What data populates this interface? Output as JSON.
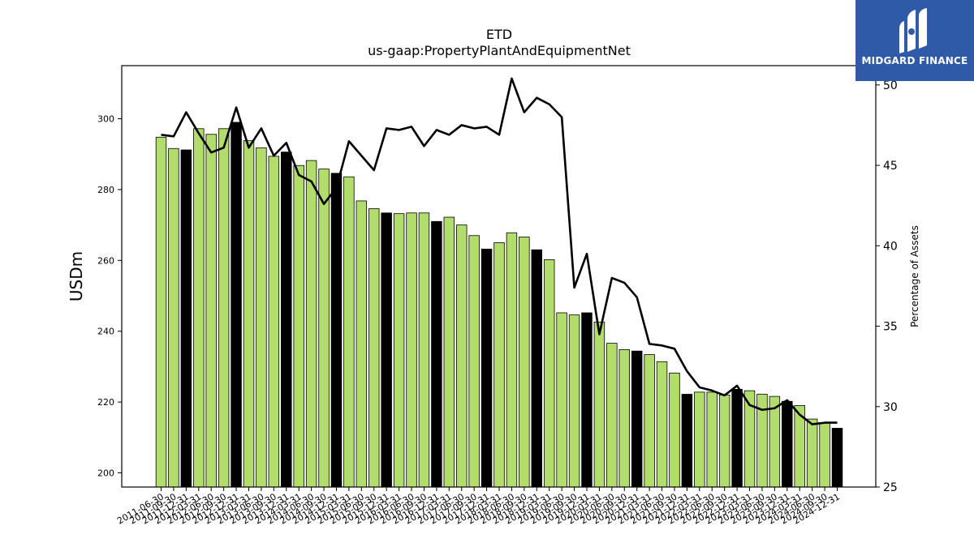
{
  "brand": {
    "name": "MIDGARD FINANCE",
    "logo_color": "#2f5aa8"
  },
  "chart_data": {
    "type": "bar",
    "title": "ETD",
    "subtitle": "us-gaap:PropertyPlantAndEquipmentNet",
    "ylabel": "USDm",
    "y2label": "Percentage of Assets",
    "ylim": [
      196,
      315
    ],
    "y2lim": [
      25,
      51.2
    ],
    "yticks": [
      200,
      220,
      240,
      260,
      280,
      300
    ],
    "y2ticks": [
      25,
      30,
      35,
      40,
      45,
      50
    ],
    "colors": {
      "bar": "#b2dc6b",
      "bar_q4": "#000000",
      "line": "#000000"
    },
    "categories": [
      "2011-06-30",
      "2011-09-30",
      "2011-12-31",
      "2012-03-31",
      "2012-06-30",
      "2012-09-30",
      "2012-12-31",
      "2013-03-31",
      "2013-06-30",
      "2013-09-30",
      "2013-12-31",
      "2014-03-31",
      "2014-06-30",
      "2014-09-30",
      "2014-12-31",
      "2015-03-31",
      "2015-06-30",
      "2015-09-30",
      "2015-12-31",
      "2016-03-31",
      "2016-06-30",
      "2016-09-30",
      "2016-12-31",
      "2017-03-31",
      "2017-06-30",
      "2017-09-30",
      "2017-12-31",
      "2018-03-31",
      "2018-06-30",
      "2018-09-30",
      "2018-12-31",
      "2019-03-31",
      "2019-06-30",
      "2019-09-30",
      "2019-12-31",
      "2020-03-31",
      "2020-06-30",
      "2020-09-30",
      "2020-12-31",
      "2021-03-31",
      "2021-06-30",
      "2021-09-30",
      "2021-12-31",
      "2022-03-31",
      "2022-06-30",
      "2022-09-30",
      "2022-12-31",
      "2023-03-31",
      "2023-06-30",
      "2023-09-30",
      "2023-12-31",
      "2024-03-31",
      "2024-06-30",
      "2024-09-30",
      "2024-12-31"
    ],
    "series": [
      {
        "type": "bar",
        "axis": "left",
        "values": [
          294.8,
          291.6,
          291.2,
          297.2,
          295.6,
          297.2,
          299.0,
          293.8,
          291.8,
          289.4,
          290.6,
          286.8,
          288.2,
          285.8,
          284.6,
          283.6,
          276.8,
          274.6,
          273.4,
          273.2,
          273.4,
          273.4,
          271.0,
          272.2,
          270.0,
          267.0,
          263.2,
          265.0,
          267.8,
          266.6,
          263.0,
          260.2,
          245.2,
          244.6,
          245.2,
          242.6,
          236.6,
          234.8,
          234.4,
          233.4,
          231.4,
          228.2,
          222.2,
          222.8,
          222.8,
          222.0,
          223.6,
          223.2,
          222.2,
          221.6,
          220.2,
          219.0,
          215.2,
          214.2,
          212.6
        ]
      },
      {
        "type": "line",
        "axis": "right",
        "name": "Percentage of Assets",
        "values": [
          46.9,
          46.8,
          48.3,
          47.0,
          45.8,
          46.1,
          48.6,
          46.1,
          47.3,
          45.6,
          46.4,
          44.4,
          44.0,
          42.6,
          43.6,
          46.5,
          45.6,
          44.7,
          47.3,
          47.2,
          47.4,
          46.2,
          47.2,
          46.9,
          47.5,
          47.3,
          47.4,
          46.9,
          50.4,
          48.3,
          49.2,
          48.8,
          48.0,
          37.4,
          39.5,
          34.5,
          38.0,
          37.7,
          36.8,
          33.9,
          33.8,
          33.6,
          32.2,
          31.2,
          31.0,
          30.7,
          31.3,
          30.1,
          29.8,
          29.9,
          30.4,
          29.5,
          28.9,
          29.0,
          29.0
        ]
      }
    ]
  }
}
